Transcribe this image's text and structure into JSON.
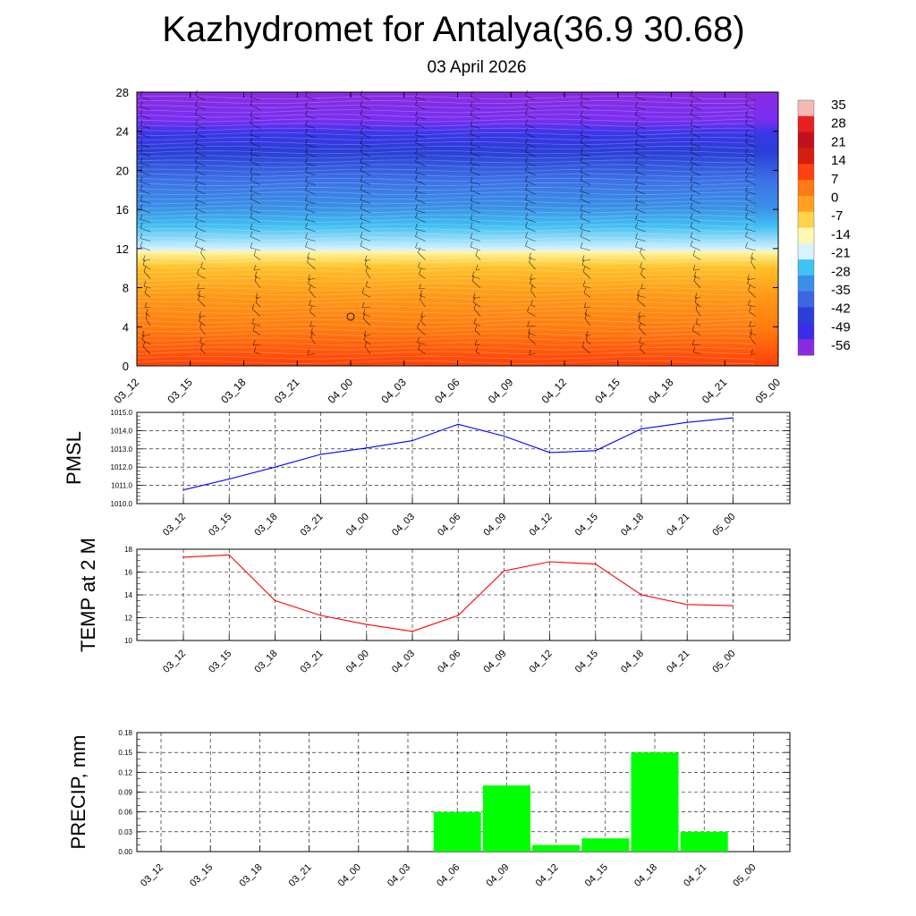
{
  "title": "Kazhydromet for Antalya(36.9 30.68)",
  "subtitle": "03 April 2026",
  "chart_data": [
    {
      "type": "heatmap",
      "name": "vertical-section",
      "x_tick_labels": [
        "03_12",
        "03_15",
        "03_18",
        "03_21",
        "04_00",
        "04_03",
        "04_06",
        "04_09",
        "04_12",
        "04_15",
        "04_18",
        "04_21",
        "05_00"
      ],
      "ylim": [
        0,
        28
      ],
      "y_ticks": [
        0,
        4,
        8,
        12,
        16,
        20,
        24,
        28
      ],
      "colorbar_labels": [
        "35",
        "28",
        "21",
        "14",
        "7",
        "0",
        "-7",
        "-14",
        "-21",
        "-28",
        "-35",
        "-42",
        "-49",
        "-56"
      ],
      "colors": {
        "top": "#8a2be2",
        "upper": "#3c55e6",
        "mid": "#5c9ae8",
        "cold_edge": "#cfeefe",
        "warm_edge": "#ffef9a",
        "lower": "#ff9a1a",
        "bottom": "#ff4510"
      }
    },
    {
      "type": "line",
      "name": "pmsl",
      "ylabel": "PMSL",
      "ylim": [
        1010,
        1015
      ],
      "y_ticks": [
        "1010.0",
        "1011.0",
        "1012.0",
        "1013.0",
        "1014.0",
        "1015.0"
      ],
      "categories": [
        "03_12",
        "03_15",
        "03_18",
        "03_21",
        "04_00",
        "04_03",
        "04_06",
        "04_09",
        "04_12",
        "04_15",
        "04_18",
        "04_21",
        "05_00"
      ],
      "values": [
        1010.75,
        1011.35,
        1012.0,
        1012.7,
        1013.05,
        1013.45,
        1014.35,
        1013.7,
        1012.8,
        1012.9,
        1014.1,
        1014.45,
        1014.7
      ],
      "color": "#0000ff",
      "grid": true
    },
    {
      "type": "line",
      "name": "temp",
      "ylabel": "TEMP at 2 M",
      "ylim": [
        10,
        18
      ],
      "y_ticks": [
        "10",
        "12",
        "14",
        "16",
        "18"
      ],
      "categories": [
        "03_12",
        "03_15",
        "03_18",
        "03_21",
        "04_00",
        "04_03",
        "04_06",
        "04_09",
        "04_12",
        "04_15",
        "04_18",
        "04_21",
        "05_00"
      ],
      "values": [
        17.3,
        17.5,
        13.5,
        12.2,
        11.4,
        10.8,
        12.2,
        16.1,
        16.9,
        16.7,
        14.0,
        13.15,
        13.05
      ],
      "color": "#ff0000",
      "grid": true
    },
    {
      "type": "bar",
      "name": "precip",
      "ylabel": "PRECIP, mm",
      "ylim": [
        0,
        0.18
      ],
      "y_ticks": [
        "0.00",
        "0.03",
        "0.06",
        "0.09",
        "0.12",
        "0.15",
        "0.18"
      ],
      "categories": [
        "03_12",
        "03_15",
        "03_18",
        "03_21",
        "04_00",
        "04_03",
        "04_06",
        "04_09",
        "04_12",
        "04_15",
        "04_18",
        "04_21",
        "05_00"
      ],
      "values": [
        0,
        0,
        0,
        0,
        0,
        0,
        0.06,
        0.1,
        0.01,
        0.02,
        0.15,
        0.03,
        0
      ],
      "color": "#00ff00",
      "grid": true
    }
  ]
}
